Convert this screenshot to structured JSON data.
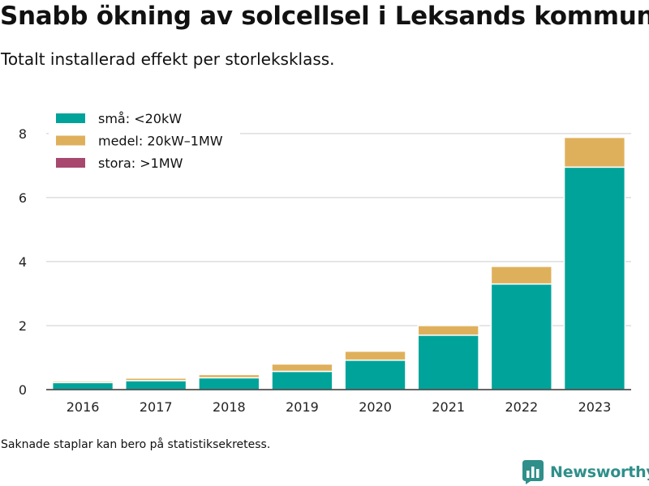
{
  "title": "Snabb ökning av solcellsel i Leksands kommun",
  "subtitle": "Totalt installerad effekt per storleksklass.",
  "footnote": "Saknade staplar kan bero på statistiksekretess.",
  "brand": "Newsworthy",
  "chart_data": {
    "type": "bar",
    "stacked": true,
    "categories": [
      "2016",
      "2017",
      "2018",
      "2019",
      "2020",
      "2021",
      "2022",
      "2023"
    ],
    "series": [
      {
        "name": "små: <20kW",
        "color": "#00a39a",
        "values": [
          0.22,
          0.28,
          0.37,
          0.57,
          0.92,
          1.7,
          3.3,
          6.95
        ]
      },
      {
        "name": "medel: 20kW–1MW",
        "color": "#dfb05c",
        "values": [
          0.05,
          0.08,
          0.1,
          0.23,
          0.28,
          0.3,
          0.55,
          0.93
        ]
      },
      {
        "name": "stora: >1MW",
        "color": "#a8486e",
        "values": [
          0,
          0,
          0,
          0,
          0,
          0,
          0,
          0
        ]
      }
    ],
    "yticks": [
      0,
      2,
      4,
      6,
      8
    ],
    "ylim": [
      0,
      8.3
    ],
    "grid": true,
    "legend_position": "top-left"
  }
}
